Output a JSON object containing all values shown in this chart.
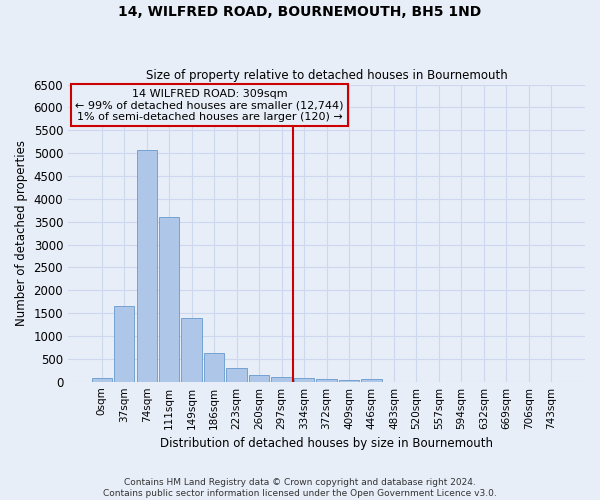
{
  "title": "14, WILFRED ROAD, BOURNEMOUTH, BH5 1ND",
  "subtitle": "Size of property relative to detached houses in Bournemouth",
  "xlabel": "Distribution of detached houses by size in Bournemouth",
  "ylabel": "Number of detached properties",
  "footer_line1": "Contains HM Land Registry data © Crown copyright and database right 2024.",
  "footer_line2": "Contains public sector information licensed under the Open Government Licence v3.0.",
  "bar_labels": [
    "0sqm",
    "37sqm",
    "74sqm",
    "111sqm",
    "149sqm",
    "186sqm",
    "223sqm",
    "260sqm",
    "297sqm",
    "334sqm",
    "372sqm",
    "409sqm",
    "446sqm",
    "483sqm",
    "520sqm",
    "557sqm",
    "594sqm",
    "632sqm",
    "669sqm",
    "706sqm",
    "743sqm"
  ],
  "bar_heights": [
    75,
    1650,
    5060,
    3600,
    1400,
    620,
    290,
    155,
    105,
    75,
    55,
    30,
    60,
    0,
    0,
    0,
    0,
    0,
    0,
    0,
    0
  ],
  "bar_color": "#aec6e8",
  "bar_edge_color": "#6699cc",
  "property_label": "14 WILFRED ROAD: 309sqm",
  "annotation_line1": "← 99% of detached houses are smaller (12,744)",
  "annotation_line2": "1% of semi-detached houses are larger (120) →",
  "vline_color": "#cc0000",
  "ylim": [
    0,
    6500
  ],
  "yticks": [
    0,
    500,
    1000,
    1500,
    2000,
    2500,
    3000,
    3500,
    4000,
    4500,
    5000,
    5500,
    6000,
    6500
  ],
  "grid_color": "#cdd8ee",
  "bg_color": "#e8eef8"
}
